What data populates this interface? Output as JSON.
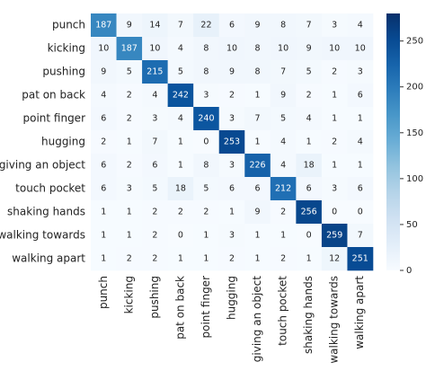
{
  "chart_data": {
    "type": "heatmap",
    "rows": [
      "punch",
      "kicking",
      "pushing",
      "pat on back",
      "point finger",
      "hugging",
      "giving an object",
      "touch pocket",
      "shaking hands",
      "walking towards",
      "walking apart"
    ],
    "columns": [
      "punch",
      "kicking",
      "pushing",
      "pat on back",
      "point finger",
      "hugging",
      "giving an object",
      "touch pocket",
      "shaking hands",
      "walking towards",
      "walking apart"
    ],
    "values": [
      [
        187,
        9,
        14,
        7,
        22,
        6,
        9,
        8,
        7,
        3,
        4
      ],
      [
        10,
        187,
        10,
        4,
        8,
        10,
        8,
        10,
        9,
        10,
        10
      ],
      [
        9,
        5,
        215,
        5,
        8,
        9,
        8,
        7,
        5,
        2,
        3
      ],
      [
        4,
        2,
        4,
        242,
        3,
        2,
        1,
        9,
        2,
        1,
        6
      ],
      [
        6,
        2,
        3,
        4,
        240,
        3,
        7,
        5,
        4,
        1,
        1
      ],
      [
        2,
        1,
        7,
        1,
        0,
        253,
        1,
        4,
        1,
        2,
        4
      ],
      [
        6,
        2,
        6,
        1,
        8,
        3,
        226,
        4,
        18,
        1,
        1
      ],
      [
        6,
        3,
        5,
        18,
        5,
        6,
        6,
        212,
        6,
        3,
        6
      ],
      [
        1,
        1,
        2,
        2,
        2,
        1,
        9,
        2,
        256,
        0,
        0
      ],
      [
        1,
        1,
        2,
        0,
        1,
        3,
        1,
        1,
        0,
        259,
        7
      ],
      [
        1,
        2,
        2,
        1,
        1,
        2,
        1,
        2,
        1,
        12,
        251
      ]
    ],
    "colormap": "Blues",
    "zlim": [
      0,
      280
    ],
    "zticks": [
      0,
      50,
      100,
      150,
      200,
      250
    ]
  }
}
